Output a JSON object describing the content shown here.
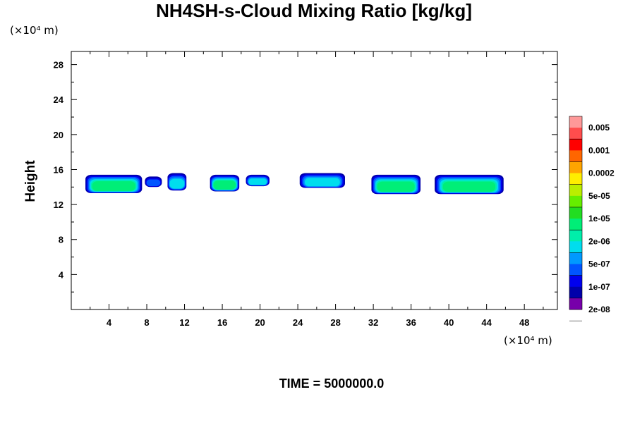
{
  "chart_data": {
    "type": "heatmap",
    "title": "NH4SH-s-Cloud Mixing Ratio [kg/kg]",
    "ylabel": "Height",
    "x_unit_label": "(×10⁴ m)",
    "y_unit_label": "(×10⁴ m)",
    "xlim": [
      0,
      51.5
    ],
    "ylim": [
      0,
      29.5
    ],
    "x_ticks": [
      4,
      8,
      12,
      16,
      20,
      24,
      28,
      32,
      36,
      40,
      44,
      48
    ],
    "y_ticks": [
      4,
      8,
      12,
      16,
      20,
      24,
      28
    ],
    "grid": false,
    "legend_placement": "right",
    "colorbar": {
      "labels": [
        "0.005",
        "0.001",
        "0.0002",
        "5e-05",
        "1e-05",
        "2e-06",
        "5e-07",
        "1e-07",
        "2e-08"
      ],
      "colors": [
        "#ff9999",
        "#ff4d4d",
        "#ff0000",
        "#ff6600",
        "#ffa500",
        "#ffee00",
        "#bbee00",
        "#66ee00",
        "#22dd22",
        "#00ee77",
        "#00eeaa",
        "#00ddee",
        "#0099ff",
        "#0055ff",
        "#0000ee",
        "#0000aa",
        "#7700aa"
      ]
    },
    "cloud_clusters": [
      {
        "x_range": [
          1.5,
          7.5
        ],
        "y_range": [
          13.3,
          15.4
        ],
        "max_level": "1e-05"
      },
      {
        "x_range": [
          7.8,
          9.6
        ],
        "y_range": [
          14.0,
          15.2
        ],
        "max_level": "1e-07"
      },
      {
        "x_range": [
          10.2,
          12.2
        ],
        "y_range": [
          13.6,
          15.6
        ],
        "max_level": "5e-07"
      },
      {
        "x_range": [
          14.7,
          17.8
        ],
        "y_range": [
          13.5,
          15.4
        ],
        "max_level": "1e-05"
      },
      {
        "x_range": [
          18.5,
          21.0
        ],
        "y_range": [
          14.1,
          15.4
        ],
        "max_level": "5e-07"
      },
      {
        "x_range": [
          24.2,
          29.0
        ],
        "y_range": [
          13.9,
          15.6
        ],
        "max_level": "5e-07"
      },
      {
        "x_range": [
          31.8,
          37.0
        ],
        "y_range": [
          13.2,
          15.4
        ],
        "max_level": "1e-05"
      },
      {
        "x_range": [
          38.5,
          45.8
        ],
        "y_range": [
          13.2,
          15.4
        ],
        "max_level": "1e-05"
      }
    ]
  },
  "footer": {
    "time_label": "TIME = 5000000.0"
  }
}
